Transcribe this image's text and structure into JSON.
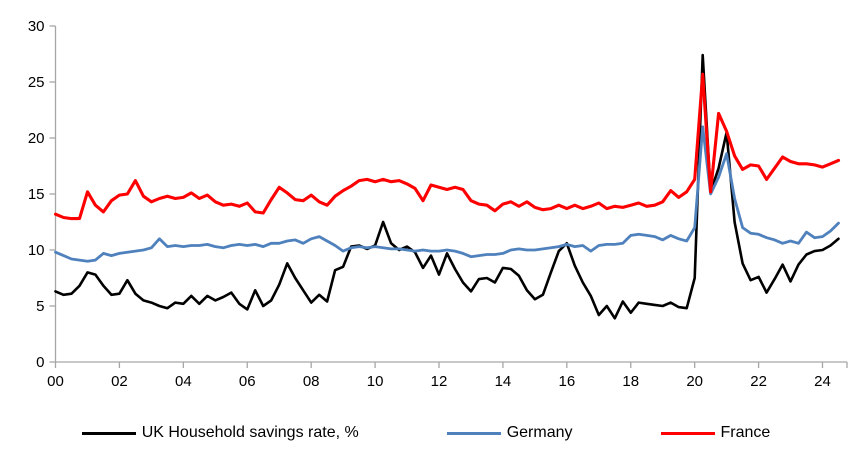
{
  "chart_data": {
    "type": "line",
    "title": "",
    "x_unit": "quarterly",
    "x_start_year": 2000,
    "x_end_year_fraction": 2024.5,
    "x_tick_labels": [
      "00",
      "02",
      "04",
      "06",
      "08",
      "10",
      "12",
      "14",
      "16",
      "18",
      "20",
      "22",
      "24"
    ],
    "y_ticks": [
      "0",
      "5",
      "10",
      "15",
      "20",
      "25",
      "30"
    ],
    "ylim": [
      0,
      30
    ],
    "grid": false,
    "legend_position": "bottom",
    "axis_color": "#a6a6a6",
    "series": [
      {
        "name": "UK Household savings rate, %",
        "color": "#000000",
        "values": [
          6.3,
          6.0,
          6.1,
          6.8,
          8.0,
          7.8,
          6.8,
          6.0,
          6.1,
          7.3,
          6.1,
          5.5,
          5.3,
          5.0,
          4.8,
          5.3,
          5.2,
          5.9,
          5.2,
          5.9,
          5.5,
          5.8,
          6.2,
          5.2,
          4.7,
          6.4,
          5.0,
          5.5,
          6.9,
          8.8,
          7.5,
          6.4,
          5.3,
          6.0,
          5.4,
          8.2,
          8.5,
          10.3,
          10.4,
          10.1,
          10.4,
          12.5,
          10.6,
          10.0,
          10.3,
          9.8,
          8.4,
          9.5,
          7.8,
          9.7,
          8.3,
          7.1,
          6.3,
          7.4,
          7.5,
          7.1,
          8.4,
          8.3,
          7.7,
          6.4,
          5.6,
          6.0,
          8.0,
          9.9,
          10.6,
          8.6,
          7.1,
          5.9,
          4.2,
          5.0,
          3.9,
          5.4,
          4.4,
          5.3,
          5.2,
          5.1,
          5.0,
          5.3,
          4.9,
          4.8,
          7.5,
          27.4,
          15.2,
          17.3,
          20.5,
          12.5,
          8.8,
          7.3,
          7.6,
          6.2,
          7.4,
          8.7,
          7.2,
          8.7,
          9.6,
          9.9,
          10.0,
          10.4,
          11.0
        ]
      },
      {
        "name": "Germany",
        "color": "#4f81bd",
        "values": [
          9.8,
          9.5,
          9.2,
          9.1,
          9.0,
          9.1,
          9.7,
          9.5,
          9.7,
          9.8,
          9.9,
          10.0,
          10.2,
          11.0,
          10.3,
          10.4,
          10.3,
          10.4,
          10.4,
          10.5,
          10.3,
          10.2,
          10.4,
          10.5,
          10.4,
          10.5,
          10.3,
          10.6,
          10.6,
          10.8,
          10.9,
          10.6,
          11.0,
          11.2,
          10.8,
          10.4,
          9.9,
          10.2,
          10.3,
          10.2,
          10.3,
          10.2,
          10.1,
          10.1,
          10.0,
          9.9,
          10.0,
          9.9,
          9.9,
          10.0,
          9.9,
          9.7,
          9.4,
          9.5,
          9.6,
          9.6,
          9.7,
          10.0,
          10.1,
          10.0,
          10.0,
          10.1,
          10.2,
          10.3,
          10.5,
          10.3,
          10.4,
          9.9,
          10.4,
          10.5,
          10.5,
          10.6,
          11.3,
          11.4,
          11.3,
          11.2,
          10.9,
          11.3,
          11.0,
          10.8,
          12.0,
          21.0,
          15.0,
          16.5,
          18.6,
          14.6,
          12.0,
          11.5,
          11.4,
          11.1,
          10.9,
          10.6,
          10.8,
          10.6,
          11.6,
          11.1,
          11.2,
          11.7,
          12.4
        ]
      },
      {
        "name": "France",
        "color": "#ff0000",
        "values": [
          13.2,
          12.9,
          12.8,
          12.8,
          15.2,
          14.0,
          13.4,
          14.4,
          14.9,
          15.0,
          16.2,
          14.8,
          14.3,
          14.6,
          14.8,
          14.6,
          14.7,
          15.1,
          14.6,
          14.9,
          14.3,
          14.0,
          14.1,
          13.9,
          14.2,
          13.4,
          13.3,
          14.5,
          15.6,
          15.1,
          14.5,
          14.4,
          14.9,
          14.3,
          14.0,
          14.8,
          15.3,
          15.7,
          16.2,
          16.3,
          16.1,
          16.3,
          16.1,
          16.2,
          15.9,
          15.5,
          14.4,
          15.8,
          15.6,
          15.4,
          15.6,
          15.4,
          14.4,
          14.1,
          14.0,
          13.5,
          14.1,
          14.3,
          13.9,
          14.3,
          13.8,
          13.6,
          13.7,
          14.0,
          13.7,
          14.0,
          13.7,
          13.9,
          14.2,
          13.7,
          13.9,
          13.8,
          14.0,
          14.2,
          13.9,
          14.0,
          14.3,
          15.3,
          14.7,
          15.2,
          16.3,
          25.7,
          15.2,
          22.2,
          20.6,
          18.4,
          17.2,
          17.6,
          17.5,
          16.3,
          17.3,
          18.3,
          17.9,
          17.7,
          17.7,
          17.6,
          17.4,
          17.7,
          18.0
        ]
      }
    ]
  }
}
